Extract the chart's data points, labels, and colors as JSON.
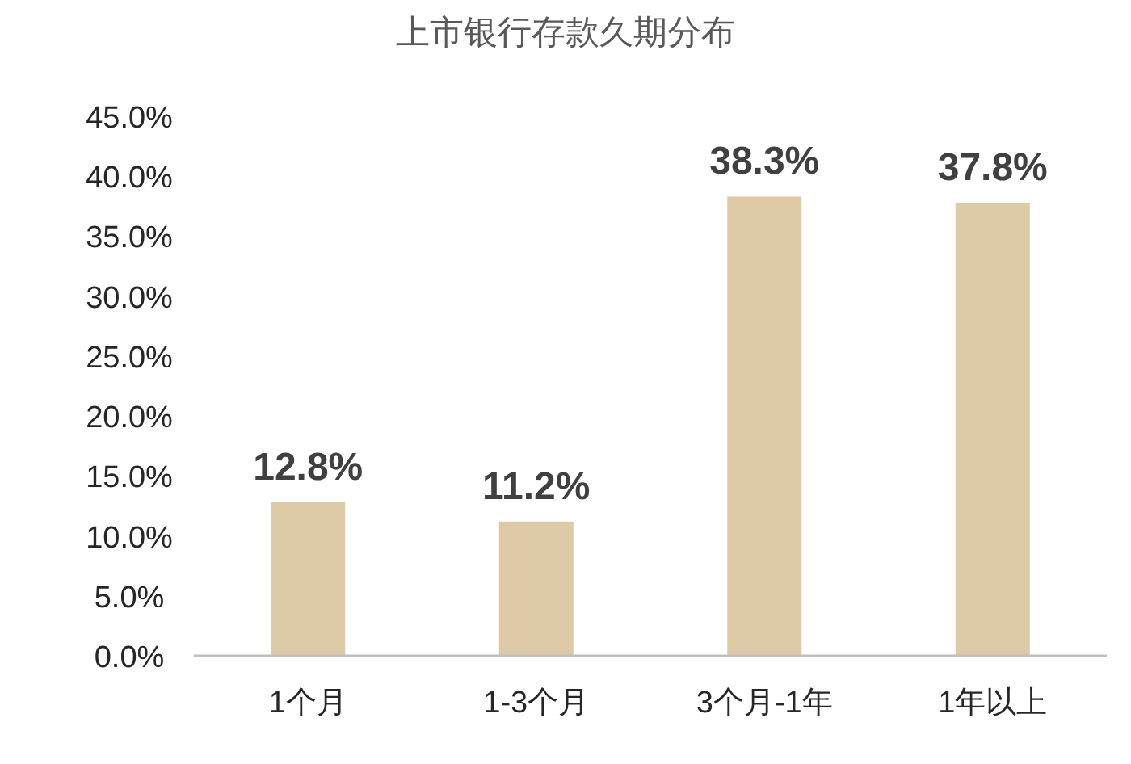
{
  "chart_data": {
    "type": "bar",
    "title": "上市银行存款久期分布",
    "categories": [
      "1个月",
      "1-3个月",
      "3个月-1年",
      "1年以上"
    ],
    "values": [
      12.8,
      11.2,
      38.3,
      37.8
    ],
    "value_labels": [
      "12.8%",
      "11.2%",
      "38.3%",
      "37.8%"
    ],
    "color": "#dfcaa8",
    "ylim": [
      0,
      45
    ],
    "yticks": [
      {
        "value": 0,
        "label": "0.0%"
      },
      {
        "value": 5,
        "label": "5.0%"
      },
      {
        "value": 10,
        "label": "10.0%"
      },
      {
        "value": 15,
        "label": "15.0%"
      },
      {
        "value": 20,
        "label": "20.0%"
      },
      {
        "value": 25,
        "label": "25.0%"
      },
      {
        "value": 30,
        "label": "30.0%"
      },
      {
        "value": 35,
        "label": "35.0%"
      },
      {
        "value": 40,
        "label": "40.0%"
      },
      {
        "value": 45,
        "label": "45.0%"
      }
    ],
    "grid": false
  }
}
